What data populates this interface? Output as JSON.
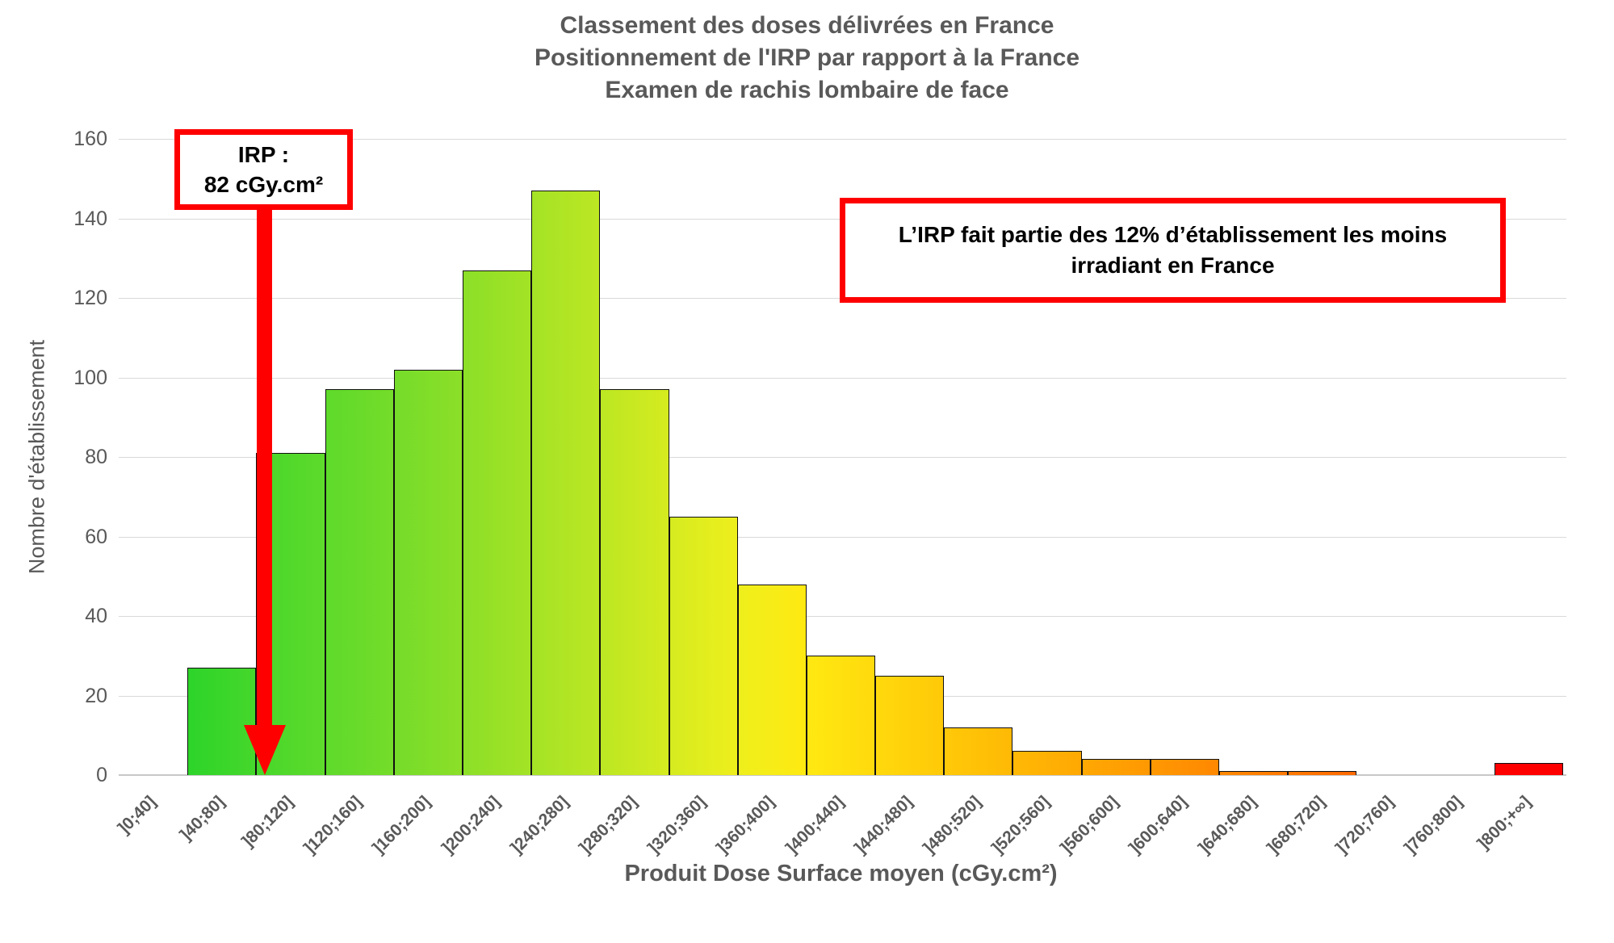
{
  "title": {
    "line1": "Classement des doses délivrées en France",
    "line2": "Positionnement de l'IRP par rapport à la France",
    "line3": "Examen de rachis lombaire de face"
  },
  "y_axis": {
    "title": "Nombre d'établissement",
    "ticks": [
      0,
      20,
      40,
      60,
      80,
      100,
      120,
      140,
      160
    ]
  },
  "x_axis": {
    "title": "Produit Dose Surface moyen (cGy.cm²)"
  },
  "annotations": {
    "irp": {
      "line1": "IRP :",
      "line2": "82 cGy.cm²"
    },
    "note": {
      "line1": "L’IRP fait partie des 12% d’établissement les moins",
      "line2": "irradiant en France"
    },
    "accent_color": "#fe0000"
  },
  "chart_data": {
    "type": "bar",
    "title": "Classement des doses délivrées en France — Positionnement de l'IRP par rapport à la France — Examen de rachis lombaire de face",
    "xlabel": "Produit Dose Surface moyen (cGy.cm²)",
    "ylabel": "Nombre d'établissement",
    "ylim": [
      0,
      160
    ],
    "grid": true,
    "legend": "none",
    "categories": [
      "]0;40]",
      "]40;80]",
      "]80;120]",
      "]120;160]",
      "]160;200]",
      "]200;240]",
      "]240;280]",
      "]280;320]",
      "]320;360]",
      "]360;400]",
      "]400;440]",
      "]440;480]",
      "]480;520]",
      "]520;560]",
      "]560;600]",
      "]600;640]",
      "]640;680]",
      "]680;720]",
      "]720;760]",
      "]760;800]",
      "]800;+∞]"
    ],
    "values": [
      0,
      27,
      81,
      97,
      102,
      127,
      147,
      97,
      65,
      48,
      30,
      25,
      12,
      6,
      4,
      4,
      1,
      1,
      0,
      0,
      3
    ],
    "bar_colors": [
      null,
      [
        "#2dd42a",
        "#46d72b"
      ],
      [
        "#46d72b",
        "#5eda2b"
      ],
      [
        "#5eda2b",
        "#75dc2a"
      ],
      [
        "#75dc2a",
        "#8cdf28"
      ],
      [
        "#8cdf28",
        "#a4e326"
      ],
      [
        "#a4e326",
        "#bce723"
      ],
      [
        "#bce723",
        "#d5eb20"
      ],
      [
        "#d5eb20",
        "#eeef1c"
      ],
      [
        "#eeef1c",
        "#ffe912"
      ],
      [
        "#ffe912",
        "#ffd90c"
      ],
      [
        "#ffd90c",
        "#ffc908"
      ],
      [
        "#ffc908",
        "#ffb905"
      ],
      [
        "#ffb905",
        "#ffa803"
      ],
      [
        "#ffa803",
        "#ff9802"
      ],
      [
        "#ff9802",
        "#ff8801"
      ],
      [
        "#ff8801",
        "#ff7801"
      ],
      [
        "#ff7801",
        "#ff6800"
      ],
      null,
      null,
      [
        "#fe0000",
        "#fe0000"
      ]
    ],
    "irp_value_cgy_cm2": 82
  }
}
